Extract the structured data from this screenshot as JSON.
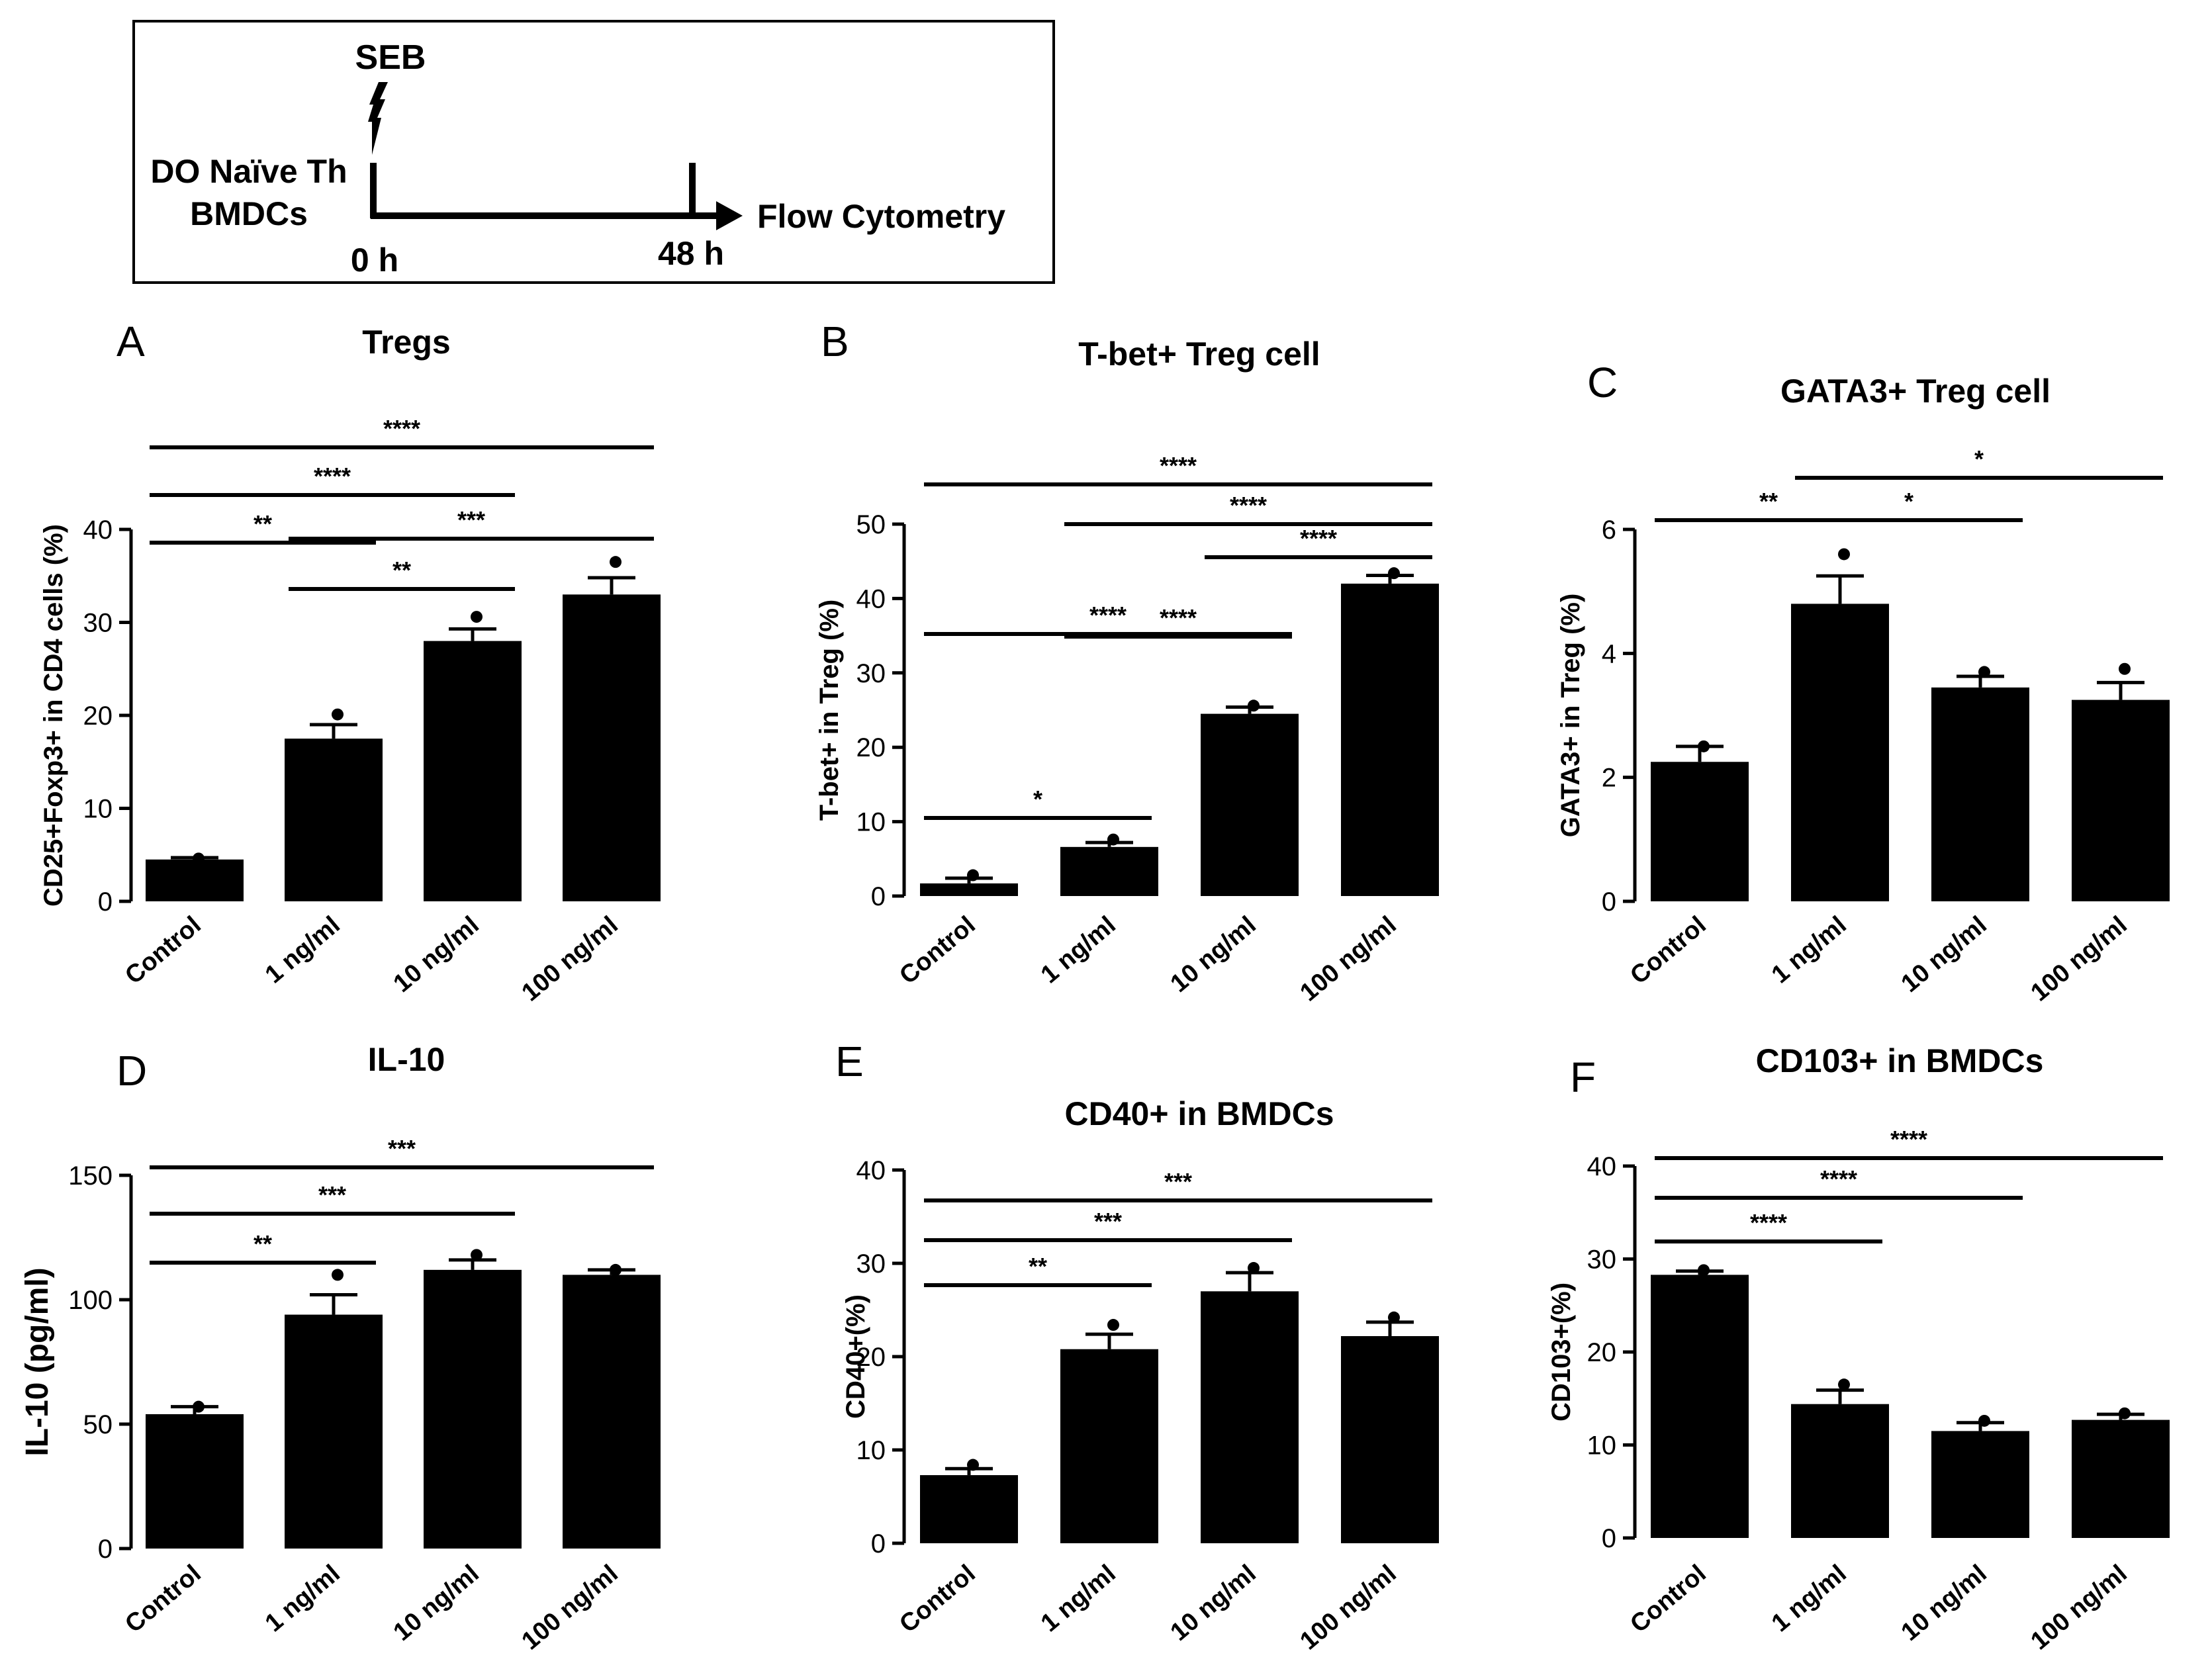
{
  "schematic": {
    "stimulus": "SEB",
    "cells_line1": "DO Naïve Th",
    "cells_line2": "BMDCs",
    "start_time": "0 h",
    "end_time": "48 h",
    "readout": "Flow Cytometry"
  },
  "chart_data": [
    {
      "panel": "A",
      "type": "bar",
      "title": "Tregs",
      "ylabel": "CD25+Foxp3+ in CD4 cells (%)",
      "categories": [
        "Control",
        "1 ng/ml",
        "10 ng/ml",
        "100 ng/ml"
      ],
      "values": [
        4.5,
        17.5,
        28,
        33
      ],
      "errors": [
        0.2,
        1.5,
        1.3,
        1.8
      ],
      "points": [
        4.6,
        20.1,
        30.6,
        36.5
      ],
      "ylim": [
        0,
        40
      ],
      "yticks": [
        0,
        10,
        20,
        30,
        40
      ],
      "significance": [
        {
          "from": 0,
          "to": 1,
          "label": "**"
        },
        {
          "from": 1,
          "to": 2,
          "label": "**"
        },
        {
          "from": 1,
          "to": 3,
          "label": "***"
        },
        {
          "from": 0,
          "to": 2,
          "label": "****"
        },
        {
          "from": 0,
          "to": 3,
          "label": "****"
        }
      ]
    },
    {
      "panel": "B",
      "type": "bar",
      "title": "T-bet+ Treg cell",
      "ylabel": "T-bet+ in Treg (%)",
      "categories": [
        "Control",
        "1 ng/ml",
        "10 ng/ml",
        "100 ng/ml"
      ],
      "values": [
        1.7,
        6.6,
        24.5,
        42
      ],
      "errors": [
        0.7,
        0.6,
        0.9,
        1.1
      ],
      "points": [
        2.8,
        7.6,
        25.6,
        43.4
      ],
      "ylim": [
        0,
        50
      ],
      "yticks": [
        0,
        10,
        20,
        30,
        40,
        50
      ],
      "significance": [
        {
          "from": 0,
          "to": 1,
          "label": "*"
        },
        {
          "from": 1,
          "to": 2,
          "label": "****"
        },
        {
          "from": 0,
          "to": 2,
          "label": "****"
        },
        {
          "from": 2,
          "to": 3,
          "label": "****"
        },
        {
          "from": 1,
          "to": 3,
          "label": "****"
        },
        {
          "from": 0,
          "to": 3,
          "label": "****"
        }
      ]
    },
    {
      "panel": "C",
      "type": "bar",
      "title": "GATA3+ Treg cell",
      "ylabel": "GATA3+ in Treg (%)",
      "categories": [
        "Control",
        "1 ng/ml",
        "10 ng/ml",
        "100 ng/ml"
      ],
      "values": [
        2.25,
        4.8,
        3.45,
        3.25
      ],
      "errors": [
        0.25,
        0.45,
        0.18,
        0.28
      ],
      "points": [
        2.5,
        5.6,
        3.7,
        3.75
      ],
      "ylim": [
        0,
        6
      ],
      "yticks": [
        0,
        2,
        4,
        6
      ],
      "significance": [
        {
          "from": 0,
          "to": 1,
          "label": "**"
        },
        {
          "from": 1,
          "to": 2,
          "label": "*"
        },
        {
          "from": 1,
          "to": 3,
          "label": "*"
        }
      ]
    },
    {
      "panel": "D",
      "type": "bar",
      "title": "IL-10",
      "ylabel": "IL-10 (pg/ml)",
      "categories": [
        "Control",
        "1 ng/ml",
        "10 ng/ml",
        "100 ng/ml"
      ],
      "values": [
        54,
        94,
        112,
        110
      ],
      "errors": [
        3,
        8,
        4,
        2
      ],
      "points": [
        57,
        110,
        118,
        112
      ],
      "ylim": [
        0,
        150
      ],
      "yticks": [
        0,
        50,
        100,
        150
      ],
      "significance": [
        {
          "from": 0,
          "to": 1,
          "label": "**"
        },
        {
          "from": 0,
          "to": 2,
          "label": "***"
        },
        {
          "from": 0,
          "to": 3,
          "label": "***"
        }
      ]
    },
    {
      "panel": "E",
      "type": "bar",
      "title": "CD40+ in BMDCs",
      "ylabel": "CD40+(%)",
      "categories": [
        "Control",
        "1 ng/ml",
        "10 ng/ml",
        "100 ng/ml"
      ],
      "values": [
        7.3,
        20.8,
        27,
        22.2
      ],
      "errors": [
        0.7,
        1.6,
        2.0,
        1.5
      ],
      "points": [
        8.4,
        23.4,
        29.5,
        24.2
      ],
      "ylim": [
        0,
        40
      ],
      "yticks": [
        0,
        10,
        20,
        30,
        40
      ],
      "significance": [
        {
          "from": 0,
          "to": 1,
          "label": "**"
        },
        {
          "from": 0,
          "to": 2,
          "label": "***"
        },
        {
          "from": 0,
          "to": 3,
          "label": "***"
        }
      ]
    },
    {
      "panel": "F",
      "type": "bar",
      "title": "CD103+ in BMDCs",
      "ylabel": "CD103+(%)",
      "categories": [
        "Control",
        "1 ng/ml",
        "10 ng/ml",
        "100 ng/ml"
      ],
      "values": [
        28.3,
        14.4,
        11.5,
        12.7
      ],
      "errors": [
        0.4,
        1.5,
        0.9,
        0.6
      ],
      "points": [
        28.8,
        16.5,
        12.6,
        13.4
      ],
      "ylim": [
        0,
        40
      ],
      "yticks": [
        0,
        10,
        20,
        30,
        40
      ],
      "significance": [
        {
          "from": 0,
          "to": 1,
          "label": "****"
        },
        {
          "from": 0,
          "to": 2,
          "label": "****"
        },
        {
          "from": 0,
          "to": 3,
          "label": "****"
        }
      ]
    }
  ]
}
